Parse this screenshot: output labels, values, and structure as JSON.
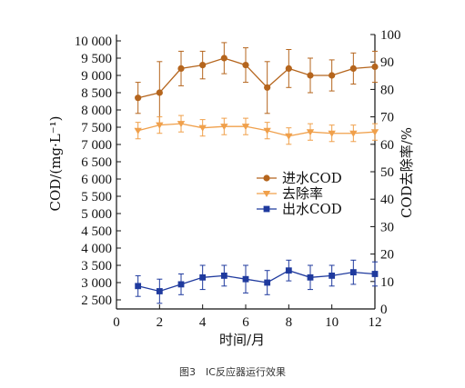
{
  "caption": "图3　IC反应器运行效果",
  "chart_data": {
    "type": "line",
    "xlabel": "时间/月",
    "ylabel_left": "COD/(mg·L⁻¹)",
    "ylabel_right": "COD去除率/%",
    "x": [
      1,
      2,
      3,
      4,
      5,
      6,
      7,
      8,
      9,
      10,
      11,
      12
    ],
    "xlim": [
      0,
      12
    ],
    "x_ticks": [
      "0",
      "2",
      "4",
      "6",
      "8",
      "10",
      "12"
    ],
    "ylim_left": [
      2000,
      10000
    ],
    "ylim_right": [
      0,
      100
    ],
    "y_ticks_left": [
      "10 000",
      "9 500",
      "9 000",
      "8 500",
      "8 000",
      "7 500",
      "7 000",
      "6 500",
      "6 000",
      "5 500",
      "5 000",
      "4 500",
      "4 000",
      "3 500",
      "3 000",
      "2 500"
    ],
    "y_ticks_right": [
      "100",
      "90",
      "80",
      "70",
      "60",
      "50",
      "40",
      "30",
      "20",
      "10",
      "0"
    ],
    "grid": false,
    "legend_position": "center-right",
    "series": [
      {
        "name": "进水COD",
        "axis": "left",
        "color": "#B5651D",
        "marker": "circle",
        "values": [
          8350,
          8500,
          9200,
          9300,
          9500,
          9300,
          8650,
          9200,
          9000,
          9000,
          9200,
          9250
        ],
        "errors": [
          450,
          900,
          500,
          400,
          450,
          500,
          750,
          550,
          500,
          450,
          450,
          450
        ]
      },
      {
        "name": "去除率",
        "axis": "right",
        "color": "#F0A04B",
        "marker": "triangle-down",
        "values": [
          65,
          67,
          67.5,
          66,
          66.5,
          66.5,
          65,
          63,
          64.5,
          64,
          64,
          64.5
        ],
        "errors": [
          3,
          3,
          3,
          3,
          3,
          3,
          3,
          3,
          3,
          3,
          3,
          3
        ]
      },
      {
        "name": "出水COD",
        "axis": "left",
        "color": "#1F3A9E",
        "marker": "square",
        "values": [
          2900,
          2750,
          2950,
          3150,
          3200,
          3100,
          3000,
          3350,
          3150,
          3200,
          3300,
          3250
        ],
        "errors": [
          300,
          350,
          300,
          350,
          300,
          400,
          350,
          300,
          350,
          300,
          350,
          350
        ]
      }
    ]
  }
}
